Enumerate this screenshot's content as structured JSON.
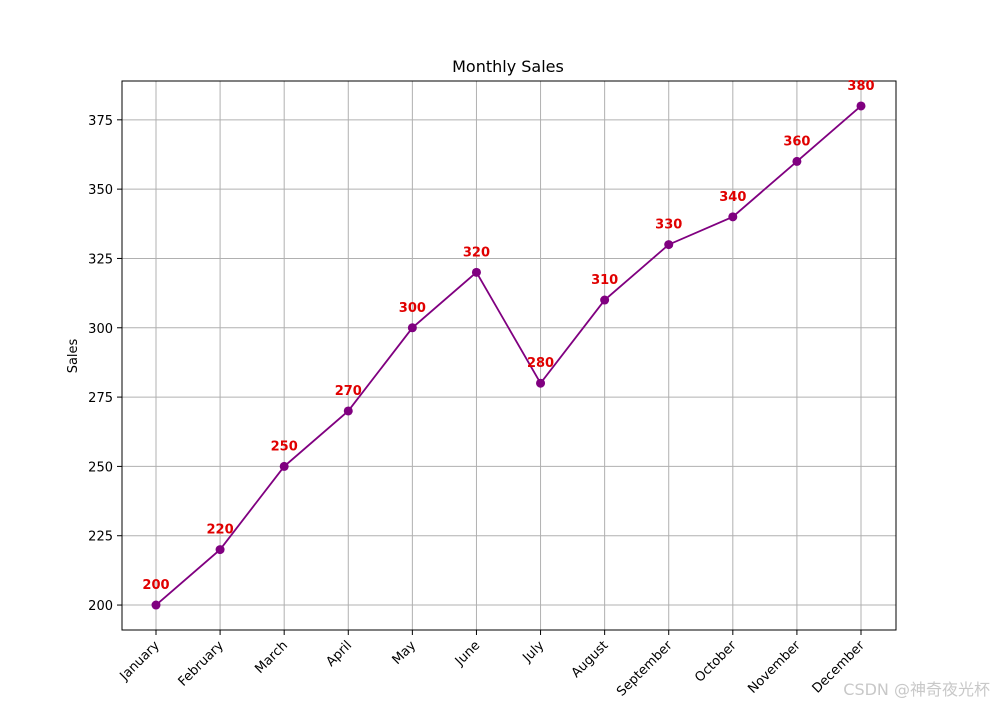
{
  "chart_data": {
    "type": "line",
    "title": "Monthly Sales",
    "xlabel": "",
    "ylabel": "Sales",
    "categories": [
      "January",
      "February",
      "March",
      "April",
      "May",
      "June",
      "July",
      "August",
      "September",
      "October",
      "November",
      "December"
    ],
    "series": [
      {
        "values": [
          200,
          220,
          250,
          270,
          300,
          320,
          280,
          310,
          330,
          340,
          360,
          380
        ],
        "color": "#800080",
        "marker": "circle"
      }
    ],
    "yticks": [
      200,
      225,
      250,
      275,
      300,
      325,
      350,
      375
    ],
    "ylim": [
      191,
      389
    ],
    "grid": true,
    "data_labels": true,
    "data_label_color": "#e00000",
    "x_tick_rotation_deg": 45
  },
  "watermark": "CSDN @神奇夜光杯"
}
